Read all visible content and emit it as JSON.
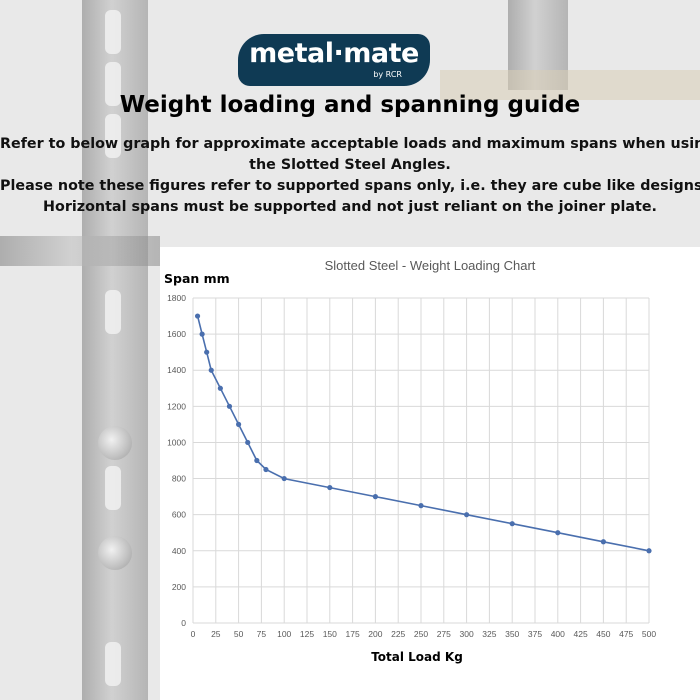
{
  "logo": {
    "brand": "metal·mate",
    "sub": "by RCR"
  },
  "heading": "Weight loading and spanning guide",
  "intro_lines": [
    "Refer to below graph for approximate acceptable loads and maximum spans when using",
    "the Slotted Steel Angles.",
    "Please note these figures refer to supported spans only,  i.e. they are cube like designs",
    "Horizontal spans must be supported and not just reliant on the joiner plate."
  ],
  "colors": {
    "series": "#4a6fae",
    "logo_bg": "#0f3a54",
    "grid": "#d9d9d9"
  },
  "chart_data": {
    "type": "line",
    "title": "Slotted Steel - Weight Loading Chart",
    "xlabel": "Total Load Kg",
    "ylabel": "Span mm",
    "xlim": [
      0,
      500
    ],
    "ylim": [
      0,
      1800
    ],
    "xticks": [
      0,
      25,
      50,
      75,
      100,
      125,
      150,
      175,
      200,
      225,
      250,
      275,
      300,
      325,
      350,
      375,
      400,
      425,
      450,
      475,
      500
    ],
    "yticks": [
      0,
      200,
      400,
      600,
      800,
      1000,
      1200,
      1400,
      1600,
      1800
    ],
    "grid": true,
    "legend": "none",
    "series": [
      {
        "points": [
          [
            5,
            1700
          ],
          [
            10,
            1600
          ],
          [
            15,
            1500
          ],
          [
            20,
            1400
          ],
          [
            30,
            1300
          ],
          [
            40,
            1200
          ],
          [
            50,
            1100
          ],
          [
            60,
            1000
          ],
          [
            70,
            900
          ],
          [
            80,
            850
          ],
          [
            100,
            800
          ],
          [
            150,
            750
          ],
          [
            200,
            700
          ],
          [
            250,
            650
          ],
          [
            300,
            600
          ],
          [
            350,
            550
          ],
          [
            400,
            500
          ],
          [
            450,
            450
          ],
          [
            500,
            400
          ]
        ]
      }
    ]
  }
}
